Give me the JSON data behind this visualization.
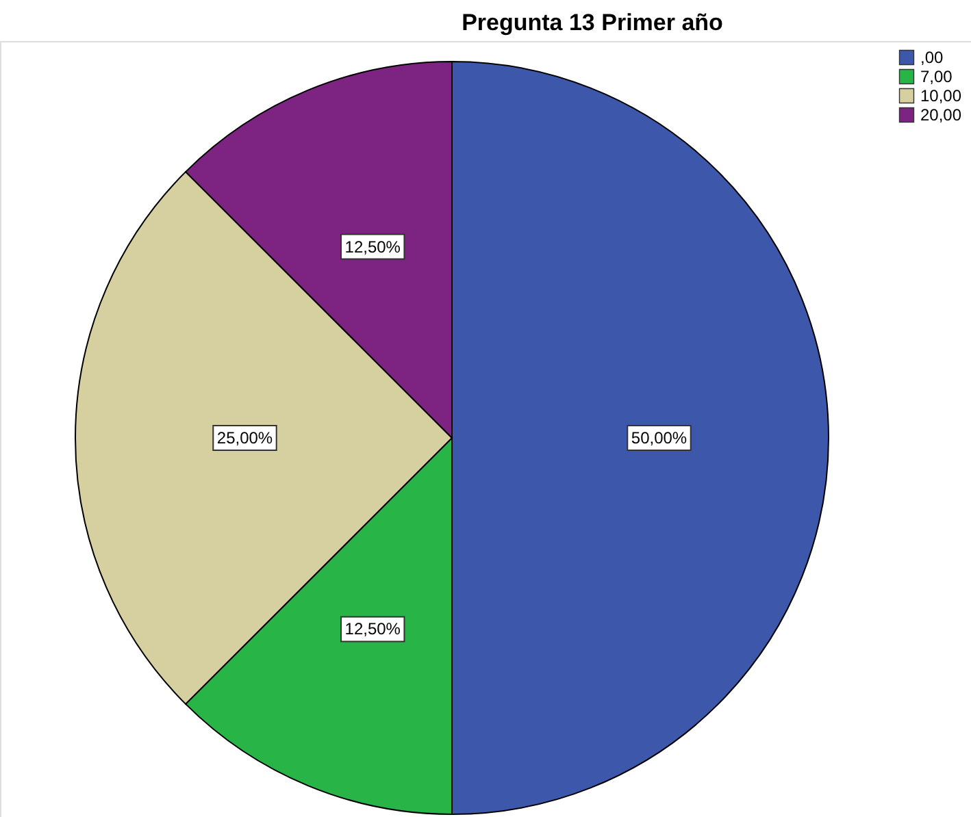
{
  "chart_data": {
    "type": "pie",
    "title": "Pregunta 13 Primer año",
    "categories": [
      ",00",
      "7,00",
      "10,00",
      "20,00"
    ],
    "values": [
      50,
      12.5,
      25,
      12.5
    ],
    "colors": [
      "#3d58ab",
      "#28b446",
      "#d6d0a0",
      "#7d2382"
    ],
    "value_labels": [
      "50,00%",
      "12,50%",
      "25,00%",
      "12,50%"
    ],
    "legend": "top right"
  }
}
